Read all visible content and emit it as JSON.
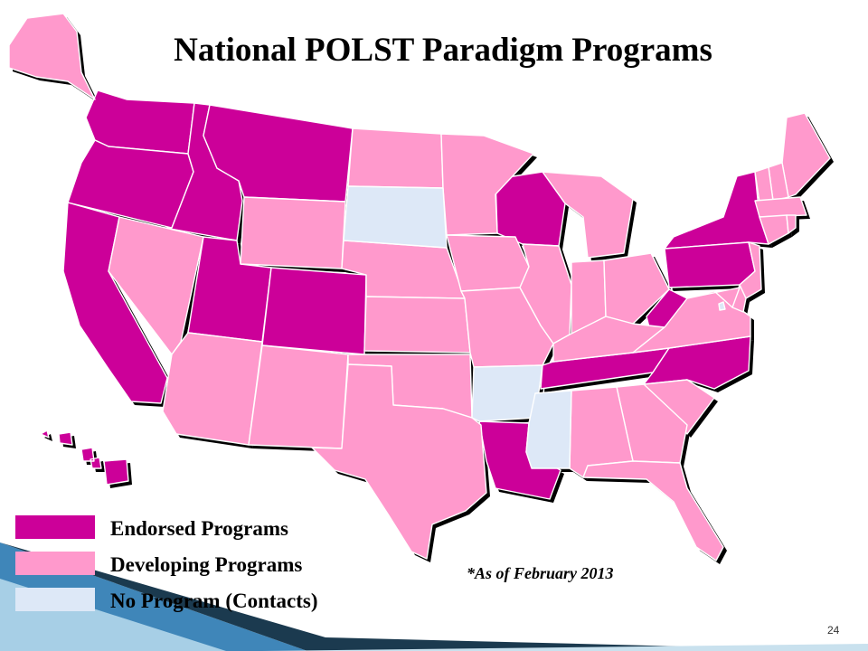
{
  "title": "National POLST Paradigm Programs",
  "note": "*As of February 2013",
  "page_number": "24",
  "colors": {
    "endorsed": "#cc0099",
    "developing": "#ff99cc",
    "none": "#dde8f7",
    "band_dark": "#1b3a4f",
    "band_blue": "#3f86b9",
    "band_light": "#a7cfe6"
  },
  "legend": [
    {
      "label": "Endorsed Programs",
      "status": "endorsed"
    },
    {
      "label": "Developing Programs",
      "status": "developing"
    },
    {
      "label": "No Program (Contacts)",
      "status": "none"
    }
  ],
  "states": {
    "WA": "endorsed",
    "OR": "endorsed",
    "ID": "endorsed",
    "MT": "endorsed",
    "UT": "endorsed",
    "CO": "endorsed",
    "CA": "endorsed",
    "WI": "endorsed",
    "NY": "endorsed",
    "PA": "endorsed",
    "WV": "endorsed",
    "TN": "endorsed",
    "NC": "endorsed",
    "LA": "endorsed",
    "HI": "endorsed",
    "NV": "developing",
    "AZ": "developing",
    "NM": "developing",
    "WY": "developing",
    "ND": "developing",
    "NE": "developing",
    "KS": "developing",
    "OK": "developing",
    "TX": "developing",
    "MN": "developing",
    "IA": "developing",
    "MO": "developing",
    "IL": "developing",
    "IN": "developing",
    "OH": "developing",
    "MI": "developing",
    "KY": "developing",
    "VA": "developing",
    "SC": "developing",
    "GA": "developing",
    "AL": "developing",
    "FL": "developing",
    "ME": "developing",
    "NH": "developing",
    "VT": "developing",
    "MA": "developing",
    "CT": "developing",
    "RI": "developing",
    "NJ": "developing",
    "DE": "developing",
    "MD": "developing",
    "AK": "developing",
    "SD": "none",
    "AR": "none",
    "MS": "none",
    "DC": "none"
  }
}
